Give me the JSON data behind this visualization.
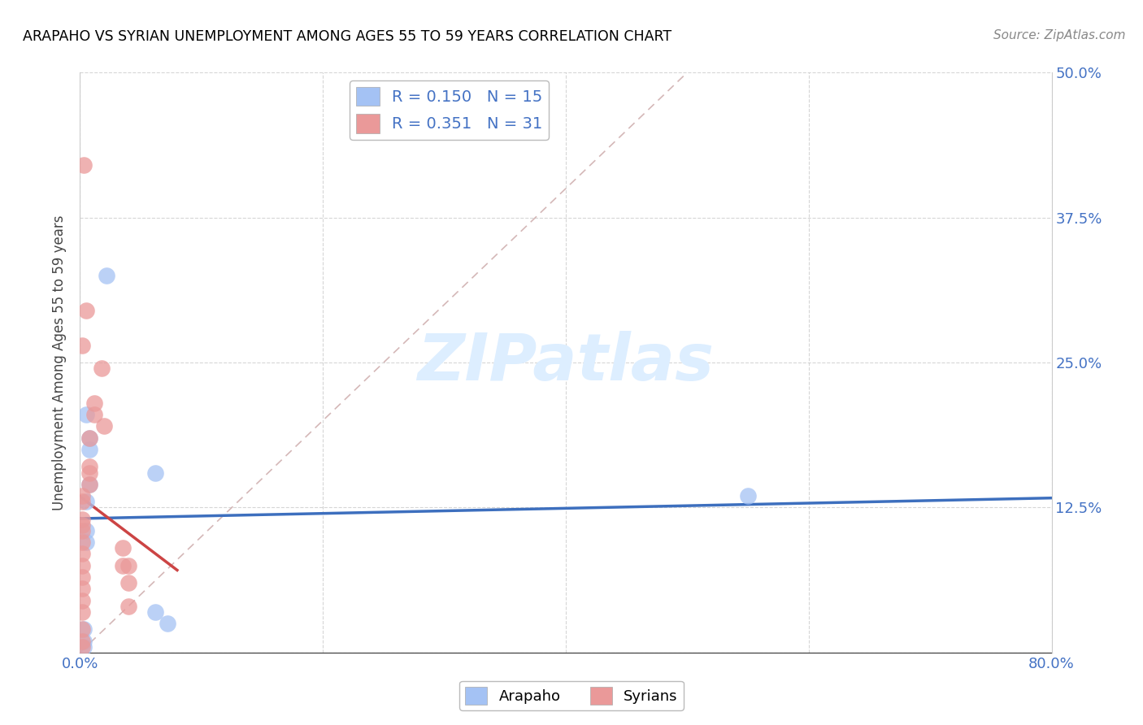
{
  "title": "ARAPAHO VS SYRIAN UNEMPLOYMENT AMONG AGES 55 TO 59 YEARS CORRELATION CHART",
  "source": "Source: ZipAtlas.com",
  "ylabel": "Unemployment Among Ages 55 to 59 years",
  "xlim": [
    0.0,
    0.8
  ],
  "ylim": [
    0.0,
    0.5
  ],
  "xticks": [
    0.0,
    0.2,
    0.4,
    0.6,
    0.8
  ],
  "yticks": [
    0.0,
    0.125,
    0.25,
    0.375,
    0.5
  ],
  "xticklabels": [
    "0.0%",
    "",
    "",
    "",
    "80.0%"
  ],
  "yticklabels": [
    "",
    "12.5%",
    "25.0%",
    "37.5%",
    "50.0%"
  ],
  "legend_arapaho_R": "0.150",
  "legend_arapaho_N": "15",
  "legend_syrians_R": "0.351",
  "legend_syrians_N": "31",
  "arapaho_color": "#a4c2f4",
  "syrians_color": "#ea9999",
  "arapaho_scatter_x": [
    0.005,
    0.022,
    0.008,
    0.008,
    0.008,
    0.005,
    0.005,
    0.005,
    0.003,
    0.003,
    0.003,
    0.062,
    0.55,
    0.062,
    0.072
  ],
  "arapaho_scatter_y": [
    0.205,
    0.325,
    0.185,
    0.175,
    0.145,
    0.13,
    0.105,
    0.095,
    0.01,
    0.02,
    0.005,
    0.155,
    0.135,
    0.035,
    0.025
  ],
  "syrians_scatter_x": [
    0.003,
    0.005,
    0.002,
    0.018,
    0.012,
    0.012,
    0.02,
    0.008,
    0.008,
    0.008,
    0.008,
    0.002,
    0.002,
    0.002,
    0.002,
    0.002,
    0.002,
    0.002,
    0.002,
    0.002,
    0.002,
    0.002,
    0.002,
    0.002,
    0.002,
    0.002,
    0.035,
    0.035,
    0.04,
    0.04,
    0.04
  ],
  "syrians_scatter_y": [
    0.42,
    0.295,
    0.265,
    0.245,
    0.215,
    0.205,
    0.195,
    0.185,
    0.16,
    0.155,
    0.145,
    0.135,
    0.13,
    0.115,
    0.11,
    0.105,
    0.095,
    0.085,
    0.075,
    0.065,
    0.055,
    0.045,
    0.035,
    0.02,
    0.01,
    0.005,
    0.09,
    0.075,
    0.075,
    0.06,
    0.04
  ],
  "arapaho_line_color": "#3d6fbe",
  "syrians_line_color": "#cc4444",
  "diag_line_color": "#d0b0b0",
  "watermark_text": "ZIPatlas",
  "watermark_color": "#ddeeff",
  "background_color": "#ffffff",
  "grid_color": "#cccccc",
  "tick_color": "#4472c4",
  "title_color": "#000000",
  "source_color": "#888888"
}
